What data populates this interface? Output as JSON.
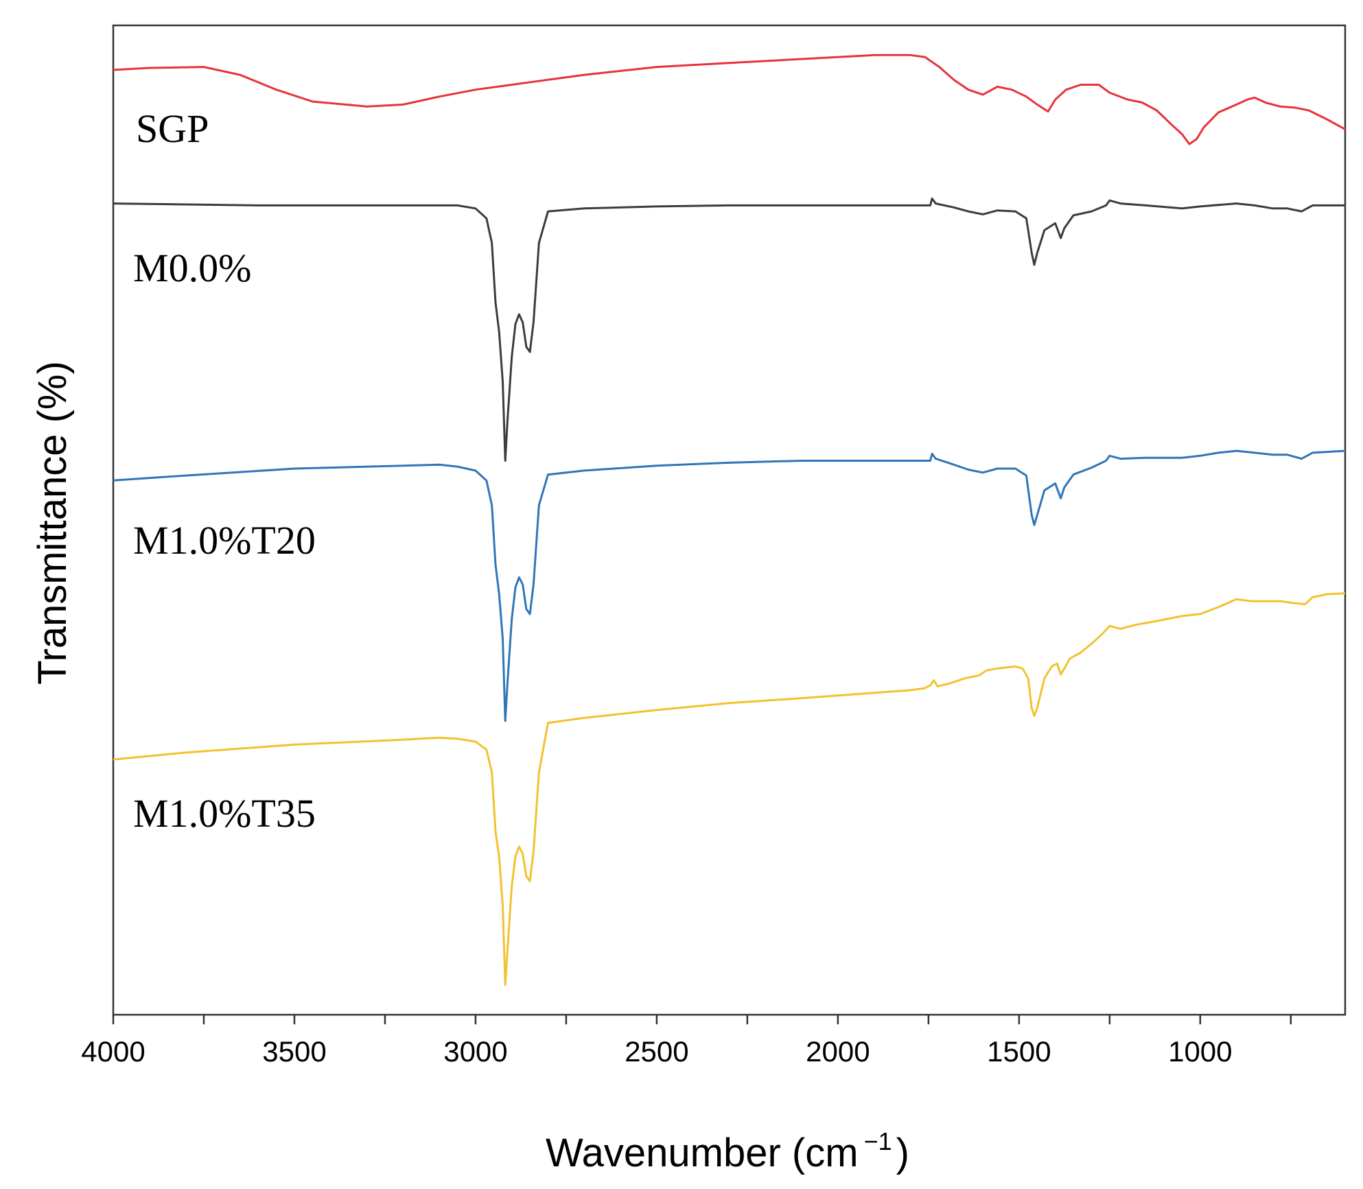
{
  "chart_data": {
    "type": "line",
    "title": "",
    "xlabel": "Wavenumber (cm",
    "xlabel_sup": "−1",
    "xlabel_close": ")",
    "ylabel": "Transmittance (%)",
    "xlim": [
      4000,
      600
    ],
    "x_reversed": true,
    "xticks": [
      4000,
      3500,
      3000,
      2500,
      2000,
      1500,
      1000
    ],
    "xtick_labels": [
      "4000",
      "3500",
      "3000",
      "2500",
      "2000",
      "1500",
      "1000"
    ],
    "yticks_visible": false,
    "y_unit": "relative offset transmittance (1 = top of plot, 0 = bottom)",
    "ylim": [
      0,
      1
    ],
    "grid": false,
    "legend": "inline labels at left",
    "series": [
      {
        "name": "SGP",
        "color": "#e8323c",
        "points": [
          [
            4000,
            0.955
          ],
          [
            3900,
            0.957
          ],
          [
            3750,
            0.958
          ],
          [
            3650,
            0.95
          ],
          [
            3550,
            0.935
          ],
          [
            3450,
            0.923
          ],
          [
            3300,
            0.918
          ],
          [
            3200,
            0.92
          ],
          [
            3100,
            0.928
          ],
          [
            3000,
            0.935
          ],
          [
            2900,
            0.94
          ],
          [
            2700,
            0.95
          ],
          [
            2500,
            0.958
          ],
          [
            2300,
            0.962
          ],
          [
            2100,
            0.966
          ],
          [
            1900,
            0.97
          ],
          [
            1800,
            0.97
          ],
          [
            1760,
            0.968
          ],
          [
            1720,
            0.958
          ],
          [
            1680,
            0.945
          ],
          [
            1640,
            0.935
          ],
          [
            1600,
            0.93
          ],
          [
            1560,
            0.938
          ],
          [
            1520,
            0.935
          ],
          [
            1480,
            0.928
          ],
          [
            1450,
            0.92
          ],
          [
            1420,
            0.913
          ],
          [
            1400,
            0.925
          ],
          [
            1370,
            0.935
          ],
          [
            1330,
            0.94
          ],
          [
            1280,
            0.94
          ],
          [
            1250,
            0.932
          ],
          [
            1200,
            0.925
          ],
          [
            1160,
            0.922
          ],
          [
            1120,
            0.914
          ],
          [
            1080,
            0.9
          ],
          [
            1050,
            0.89
          ],
          [
            1030,
            0.88
          ],
          [
            1010,
            0.885
          ],
          [
            990,
            0.897
          ],
          [
            950,
            0.912
          ],
          [
            900,
            0.92
          ],
          [
            870,
            0.925
          ],
          [
            850,
            0.927
          ],
          [
            820,
            0.922
          ],
          [
            780,
            0.918
          ],
          [
            740,
            0.917
          ],
          [
            700,
            0.914
          ],
          [
            650,
            0.905
          ],
          [
            600,
            0.895
          ]
        ]
      },
      {
        "name": "M0.0%",
        "color": "#3c3c3c",
        "points": [
          [
            4000,
            0.82
          ],
          [
            3600,
            0.818
          ],
          [
            3200,
            0.818
          ],
          [
            3050,
            0.818
          ],
          [
            3000,
            0.815
          ],
          [
            2970,
            0.805
          ],
          [
            2955,
            0.78
          ],
          [
            2945,
            0.72
          ],
          [
            2935,
            0.69
          ],
          [
            2925,
            0.64
          ],
          [
            2918,
            0.56
          ],
          [
            2912,
            0.6
          ],
          [
            2900,
            0.665
          ],
          [
            2890,
            0.698
          ],
          [
            2880,
            0.708
          ],
          [
            2870,
            0.7
          ],
          [
            2860,
            0.675
          ],
          [
            2850,
            0.67
          ],
          [
            2840,
            0.7
          ],
          [
            2825,
            0.78
          ],
          [
            2800,
            0.812
          ],
          [
            2700,
            0.815
          ],
          [
            2500,
            0.817
          ],
          [
            2300,
            0.818
          ],
          [
            2100,
            0.818
          ],
          [
            1800,
            0.818
          ],
          [
            1745,
            0.818
          ],
          [
            1740,
            0.825
          ],
          [
            1730,
            0.82
          ],
          [
            1680,
            0.816
          ],
          [
            1640,
            0.812
          ],
          [
            1600,
            0.809
          ],
          [
            1560,
            0.813
          ],
          [
            1510,
            0.812
          ],
          [
            1480,
            0.805
          ],
          [
            1465,
            0.77
          ],
          [
            1458,
            0.758
          ],
          [
            1450,
            0.77
          ],
          [
            1430,
            0.793
          ],
          [
            1400,
            0.8
          ],
          [
            1385,
            0.785
          ],
          [
            1375,
            0.795
          ],
          [
            1350,
            0.808
          ],
          [
            1300,
            0.812
          ],
          [
            1260,
            0.818
          ],
          [
            1250,
            0.823
          ],
          [
            1220,
            0.82
          ],
          [
            1150,
            0.818
          ],
          [
            1050,
            0.815
          ],
          [
            1000,
            0.817
          ],
          [
            900,
            0.82
          ],
          [
            850,
            0.818
          ],
          [
            800,
            0.815
          ],
          [
            760,
            0.815
          ],
          [
            720,
            0.812
          ],
          [
            690,
            0.818
          ],
          [
            600,
            0.818
          ]
        ]
      },
      {
        "name": "M1.0%T20",
        "color": "#2f76b7",
        "points": [
          [
            4000,
            0.54
          ],
          [
            3800,
            0.545
          ],
          [
            3500,
            0.552
          ],
          [
            3200,
            0.555
          ],
          [
            3100,
            0.556
          ],
          [
            3050,
            0.554
          ],
          [
            3000,
            0.55
          ],
          [
            2970,
            0.54
          ],
          [
            2955,
            0.515
          ],
          [
            2945,
            0.455
          ],
          [
            2935,
            0.425
          ],
          [
            2925,
            0.38
          ],
          [
            2918,
            0.297
          ],
          [
            2912,
            0.335
          ],
          [
            2900,
            0.4
          ],
          [
            2890,
            0.432
          ],
          [
            2880,
            0.442
          ],
          [
            2870,
            0.435
          ],
          [
            2860,
            0.41
          ],
          [
            2850,
            0.405
          ],
          [
            2840,
            0.435
          ],
          [
            2825,
            0.515
          ],
          [
            2800,
            0.546
          ],
          [
            2700,
            0.55
          ],
          [
            2500,
            0.555
          ],
          [
            2300,
            0.558
          ],
          [
            2100,
            0.56
          ],
          [
            1800,
            0.56
          ],
          [
            1745,
            0.56
          ],
          [
            1740,
            0.567
          ],
          [
            1730,
            0.562
          ],
          [
            1680,
            0.556
          ],
          [
            1640,
            0.551
          ],
          [
            1600,
            0.548
          ],
          [
            1560,
            0.552
          ],
          [
            1510,
            0.552
          ],
          [
            1480,
            0.545
          ],
          [
            1465,
            0.505
          ],
          [
            1458,
            0.495
          ],
          [
            1450,
            0.505
          ],
          [
            1430,
            0.53
          ],
          [
            1400,
            0.537
          ],
          [
            1385,
            0.522
          ],
          [
            1375,
            0.533
          ],
          [
            1350,
            0.546
          ],
          [
            1300,
            0.553
          ],
          [
            1260,
            0.56
          ],
          [
            1250,
            0.565
          ],
          [
            1220,
            0.562
          ],
          [
            1150,
            0.563
          ],
          [
            1050,
            0.563
          ],
          [
            1000,
            0.565
          ],
          [
            950,
            0.568
          ],
          [
            900,
            0.57
          ],
          [
            850,
            0.568
          ],
          [
            800,
            0.566
          ],
          [
            760,
            0.566
          ],
          [
            720,
            0.562
          ],
          [
            690,
            0.568
          ],
          [
            600,
            0.57
          ]
        ]
      },
      {
        "name": "M1.0%T35",
        "color": "#f2c230",
        "points": [
          [
            4000,
            0.258
          ],
          [
            3800,
            0.265
          ],
          [
            3500,
            0.273
          ],
          [
            3200,
            0.278
          ],
          [
            3100,
            0.28
          ],
          [
            3050,
            0.279
          ],
          [
            3000,
            0.276
          ],
          [
            2970,
            0.268
          ],
          [
            2955,
            0.245
          ],
          [
            2945,
            0.185
          ],
          [
            2935,
            0.16
          ],
          [
            2925,
            0.11
          ],
          [
            2918,
            0.03
          ],
          [
            2912,
            0.065
          ],
          [
            2900,
            0.13
          ],
          [
            2890,
            0.16
          ],
          [
            2880,
            0.17
          ],
          [
            2870,
            0.163
          ],
          [
            2860,
            0.14
          ],
          [
            2850,
            0.135
          ],
          [
            2840,
            0.165
          ],
          [
            2825,
            0.245
          ],
          [
            2800,
            0.295
          ],
          [
            2700,
            0.3
          ],
          [
            2500,
            0.308
          ],
          [
            2300,
            0.315
          ],
          [
            2100,
            0.32
          ],
          [
            1800,
            0.328
          ],
          [
            1760,
            0.33
          ],
          [
            1745,
            0.333
          ],
          [
            1735,
            0.338
          ],
          [
            1725,
            0.332
          ],
          [
            1690,
            0.335
          ],
          [
            1650,
            0.34
          ],
          [
            1610,
            0.343
          ],
          [
            1590,
            0.348
          ],
          [
            1560,
            0.35
          ],
          [
            1510,
            0.352
          ],
          [
            1490,
            0.35
          ],
          [
            1475,
            0.34
          ],
          [
            1465,
            0.31
          ],
          [
            1458,
            0.302
          ],
          [
            1450,
            0.31
          ],
          [
            1430,
            0.34
          ],
          [
            1410,
            0.352
          ],
          [
            1395,
            0.355
          ],
          [
            1385,
            0.344
          ],
          [
            1375,
            0.35
          ],
          [
            1360,
            0.36
          ],
          [
            1330,
            0.366
          ],
          [
            1300,
            0.375
          ],
          [
            1270,
            0.385
          ],
          [
            1250,
            0.393
          ],
          [
            1220,
            0.39
          ],
          [
            1180,
            0.394
          ],
          [
            1120,
            0.398
          ],
          [
            1050,
            0.403
          ],
          [
            1000,
            0.405
          ],
          [
            950,
            0.412
          ],
          [
            900,
            0.42
          ],
          [
            860,
            0.418
          ],
          [
            820,
            0.418
          ],
          [
            780,
            0.418
          ],
          [
            740,
            0.416
          ],
          [
            710,
            0.415
          ],
          [
            690,
            0.422
          ],
          [
            650,
            0.425
          ],
          [
            600,
            0.426
          ]
        ]
      }
    ]
  }
}
